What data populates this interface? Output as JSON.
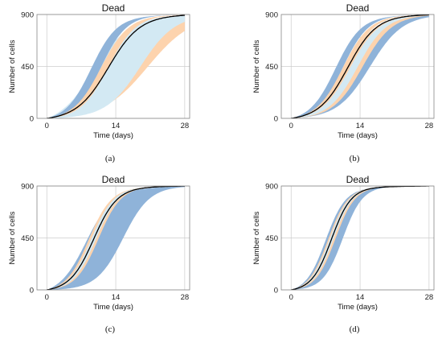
{
  "colors": {
    "blue": "#8fb3d9",
    "orange": "#fdd3ad",
    "lightblue": "#d3e9f3",
    "median": "#000000",
    "grid": "#cccccc"
  },
  "chart_data": [
    {
      "type": "area",
      "panel_label": "(a)",
      "title": "Dead",
      "xlabel": "Time (days)",
      "ylabel": "Number of cells",
      "xlim": [
        -2,
        29
      ],
      "ylim": [
        0,
        900
      ],
      "xticks": [
        0,
        14,
        28
      ],
      "yticks": [
        0,
        450,
        900
      ],
      "grid": true,
      "bands": [
        {
          "color": "orange",
          "lower_t50": 15.5,
          "upper_t50": 20.5,
          "steep": 4.5
        },
        {
          "color": "lightblue",
          "lower_t50": 9.5,
          "upper_t50": 19.0,
          "steep": 3.5
        },
        {
          "color": "blue",
          "lower_t50": 9.0,
          "upper_t50": 11.0,
          "steep": 2.6
        },
        {
          "color": "orange",
          "lower_t50": 11.0,
          "upper_t50": 12.5,
          "steep": 2.8
        }
      ],
      "median": {
        "t50": 12.5,
        "steep": 3.2
      },
      "end_x": 28
    },
    {
      "type": "area",
      "panel_label": "(b)",
      "title": "Dead",
      "xlabel": "Time (days)",
      "ylabel": "Number of cells",
      "xlim": [
        -2,
        29
      ],
      "ylim": [
        0,
        900
      ],
      "xticks": [
        0,
        14,
        28
      ],
      "yticks": [
        0,
        450,
        900
      ],
      "grid": true,
      "bands": [
        {
          "color": "blue",
          "lower_t50": 12.0,
          "upper_t50": 16.0,
          "steep": 3.3
        },
        {
          "color": "orange",
          "lower_t50": 11.0,
          "upper_t50": 14.5,
          "steep": 3.0
        },
        {
          "color": "blue",
          "lower_t50": 9.0,
          "upper_t50": 10.5,
          "steep": 2.6
        },
        {
          "color": "orange",
          "lower_t50": 10.5,
          "upper_t50": 11.5,
          "steep": 2.7
        },
        {
          "color": "lightblue",
          "lower_t50": 12.0,
          "upper_t50": 13.5,
          "steep": 2.9
        }
      ],
      "median": {
        "t50": 11.5,
        "steep": 2.9
      },
      "end_x": 28
    },
    {
      "type": "area",
      "panel_label": "(c)",
      "title": "Dead",
      "xlabel": "Time (days)",
      "ylabel": "Number of cells",
      "xlim": [
        -2,
        29
      ],
      "ylim": [
        0,
        900
      ],
      "xticks": [
        0,
        14,
        28
      ],
      "yticks": [
        0,
        450,
        900
      ],
      "grid": true,
      "bands": [
        {
          "color": "blue",
          "lower_t50": 8.0,
          "upper_t50": 15.5,
          "steep": 2.7
        },
        {
          "color": "orange",
          "lower_t50": 8.5,
          "upper_t50": 10.5,
          "steep": 2.3
        },
        {
          "color": "lightblue",
          "lower_t50": 9.0,
          "upper_t50": 10.0,
          "steep": 2.3
        }
      ],
      "median": {
        "t50": 9.5,
        "steep": 2.4
      },
      "end_x": 28
    },
    {
      "type": "area",
      "panel_label": "(d)",
      "title": "Dead",
      "xlabel": "Time (days)",
      "ylabel": "Number of cells",
      "xlim": [
        -2,
        29
      ],
      "ylim": [
        0,
        900
      ],
      "xticks": [
        0,
        14,
        28
      ],
      "yticks": [
        0,
        450,
        900
      ],
      "grid": true,
      "bands": [
        {
          "color": "blue",
          "lower_t50": 7.0,
          "upper_t50": 10.5,
          "steep": 2.0
        },
        {
          "color": "orange",
          "lower_t50": 7.5,
          "upper_t50": 9.0,
          "steep": 2.0
        },
        {
          "color": "lightblue",
          "lower_t50": 7.8,
          "upper_t50": 8.6,
          "steep": 2.0
        }
      ],
      "median": {
        "t50": 8.2,
        "steep": 2.0
      },
      "end_x": 28
    }
  ]
}
